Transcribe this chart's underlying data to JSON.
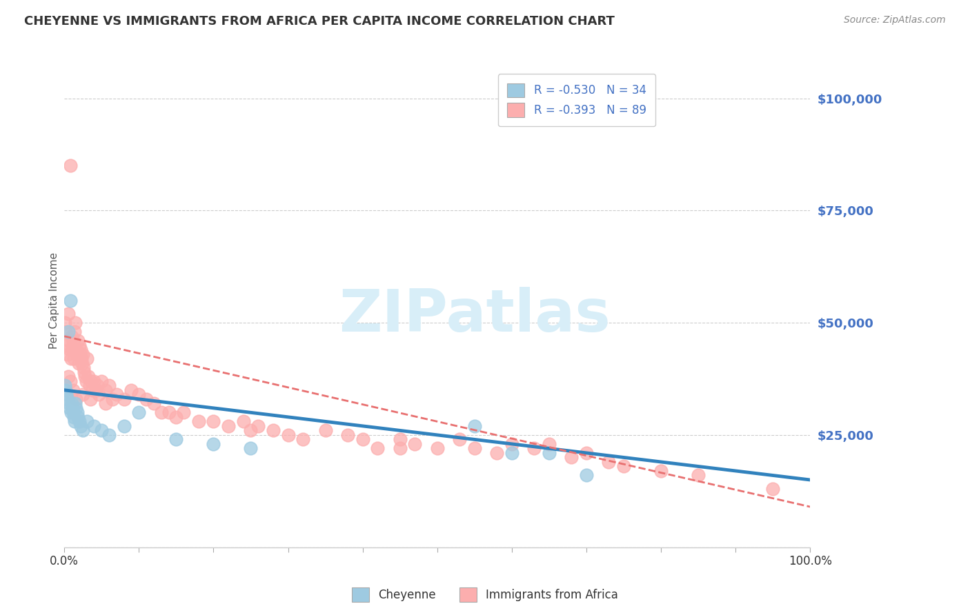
{
  "title": "CHEYENNE VS IMMIGRANTS FROM AFRICA PER CAPITA INCOME CORRELATION CHART",
  "source": "Source: ZipAtlas.com",
  "ylabel": "Per Capita Income",
  "xlim": [
    0,
    1.0
  ],
  "ylim": [
    0,
    110000
  ],
  "yticks": [
    0,
    25000,
    50000,
    75000,
    100000
  ],
  "ytick_labels": [
    "",
    "$25,000",
    "$50,000",
    "$75,000",
    "$100,000"
  ],
  "legend1_label": "R = -0.530   N = 34",
  "legend2_label": "R = -0.393   N = 89",
  "cheyenne_color": "#9ECAE1",
  "africa_color": "#FCAEAE",
  "cheyenne_line_color": "#3182BD",
  "africa_line_color": "#E87070",
  "watermark": "ZIPatlas",
  "watermark_color": "#D8EEF8",
  "title_color": "#333333",
  "right_tick_color": "#4472C4",
  "grid_color": "#CCCCCC",
  "background_color": "#FFFFFF",
  "cheyenne_x": [
    0.001,
    0.002,
    0.003,
    0.004,
    0.005,
    0.006,
    0.007,
    0.008,
    0.009,
    0.01,
    0.011,
    0.012,
    0.013,
    0.014,
    0.015,
    0.016,
    0.017,
    0.018,
    0.02,
    0.022,
    0.025,
    0.03,
    0.04,
    0.05,
    0.06,
    0.08,
    0.1,
    0.15,
    0.2,
    0.25,
    0.55,
    0.6,
    0.65,
    0.7
  ],
  "cheyenne_y": [
    36000,
    35000,
    34000,
    33000,
    48000,
    32000,
    31000,
    55000,
    30000,
    32000,
    31000,
    30000,
    29000,
    28000,
    32000,
    31000,
    30000,
    29000,
    28000,
    27000,
    26000,
    28000,
    27000,
    26000,
    25000,
    27000,
    30000,
    24000,
    23000,
    22000,
    27000,
    21000,
    21000,
    16000
  ],
  "africa_x": [
    0.001,
    0.002,
    0.003,
    0.004,
    0.005,
    0.006,
    0.007,
    0.008,
    0.009,
    0.01,
    0.011,
    0.012,
    0.013,
    0.014,
    0.015,
    0.016,
    0.017,
    0.018,
    0.019,
    0.02,
    0.021,
    0.022,
    0.023,
    0.024,
    0.025,
    0.026,
    0.027,
    0.028,
    0.029,
    0.03,
    0.032,
    0.034,
    0.036,
    0.038,
    0.04,
    0.042,
    0.044,
    0.046,
    0.05,
    0.055,
    0.06,
    0.065,
    0.07,
    0.08,
    0.09,
    0.1,
    0.11,
    0.12,
    0.13,
    0.14,
    0.15,
    0.16,
    0.18,
    0.2,
    0.22,
    0.24,
    0.26,
    0.28,
    0.3,
    0.32,
    0.35,
    0.38,
    0.4,
    0.42,
    0.45,
    0.47,
    0.5,
    0.53,
    0.55,
    0.58,
    0.6,
    0.63,
    0.65,
    0.68,
    0.7,
    0.73,
    0.75,
    0.8,
    0.85,
    0.95,
    0.005,
    0.008,
    0.012,
    0.016,
    0.025,
    0.035,
    0.055,
    0.25,
    0.45
  ],
  "africa_y": [
    50000,
    48000,
    45000,
    43000,
    52000,
    46000,
    44000,
    85000,
    42000,
    47000,
    44000,
    46000,
    42000,
    48000,
    50000,
    44000,
    43000,
    46000,
    41000,
    45000,
    43000,
    44000,
    42000,
    41000,
    43000,
    40000,
    39000,
    38000,
    37000,
    42000,
    38000,
    36000,
    37000,
    35000,
    37000,
    35000,
    36000,
    34000,
    37000,
    35000,
    36000,
    33000,
    34000,
    33000,
    35000,
    34000,
    33000,
    32000,
    30000,
    30000,
    29000,
    30000,
    28000,
    28000,
    27000,
    28000,
    27000,
    26000,
    25000,
    24000,
    26000,
    25000,
    24000,
    22000,
    22000,
    23000,
    22000,
    24000,
    22000,
    21000,
    23000,
    22000,
    23000,
    20000,
    21000,
    19000,
    18000,
    17000,
    16000,
    13000,
    38000,
    37000,
    35000,
    33000,
    34000,
    33000,
    32000,
    26000,
    24000
  ],
  "cheyenne_intercept": 35000,
  "cheyenne_slope": -20000,
  "africa_intercept": 47000,
  "africa_slope": -38000
}
